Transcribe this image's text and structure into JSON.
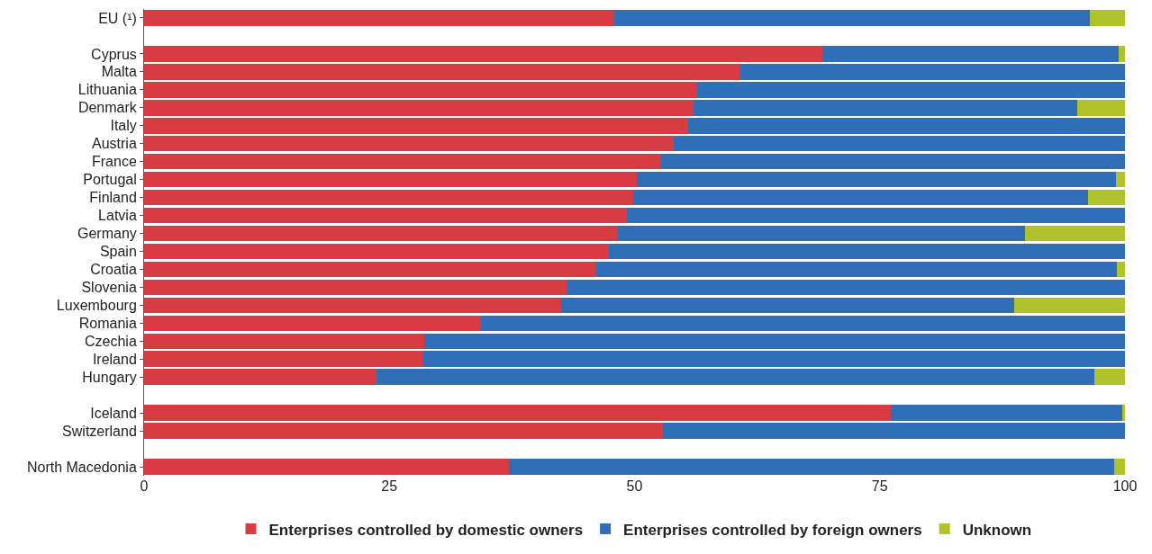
{
  "chart_data": {
    "type": "bar",
    "orientation": "horizontal",
    "stacked": true,
    "categories": [
      "EU (¹)",
      null,
      "Cyprus",
      "Malta",
      "Lithuania",
      "Denmark",
      "Italy",
      "Austria",
      "France",
      "Portugal",
      "Finland",
      "Latvia",
      "Germany",
      "Spain",
      "Croatia",
      "Slovenia",
      "Luxembourg",
      "Romania",
      "Czechia",
      "Ireland",
      "Hungary",
      null,
      "Iceland",
      "Switzerland",
      null,
      "North Macedonia"
    ],
    "series": [
      {
        "name": "Enterprises controlled by domestic owners",
        "color": "#d83b41",
        "values": [
          47.9,
          null,
          69.1,
          60.8,
          56.4,
          56.0,
          55.5,
          54.0,
          52.7,
          50.2,
          49.9,
          49.2,
          48.3,
          47.4,
          46.1,
          43.2,
          42.5,
          34.3,
          28.6,
          28.5,
          23.7,
          null,
          76.1,
          52.9,
          null,
          37.2
        ]
      },
      {
        "name": "Enterprises controlled by foreign owners",
        "color": "#2e6fb7",
        "values": [
          48.5,
          null,
          30.3,
          39.2,
          43.6,
          39.1,
          44.5,
          46.0,
          47.3,
          48.9,
          46.3,
          50.8,
          41.5,
          52.6,
          53.1,
          56.8,
          46.2,
          65.7,
          71.4,
          71.5,
          73.2,
          null,
          23.6,
          47.1,
          null,
          61.7
        ]
      },
      {
        "name": "Unknown",
        "color": "#afc22a",
        "values": [
          3.6,
          null,
          0.6,
          0,
          0,
          4.9,
          0,
          0,
          0,
          0.9,
          3.8,
          0,
          10.2,
          0,
          0.8,
          0,
          11.3,
          0,
          0,
          0,
          3.1,
          null,
          0.3,
          0,
          null,
          1.1
        ]
      }
    ],
    "xlim": [
      0,
      100
    ],
    "xticks": [
      0,
      25,
      50,
      75,
      100
    ],
    "grid": false,
    "legend": "bottom"
  }
}
